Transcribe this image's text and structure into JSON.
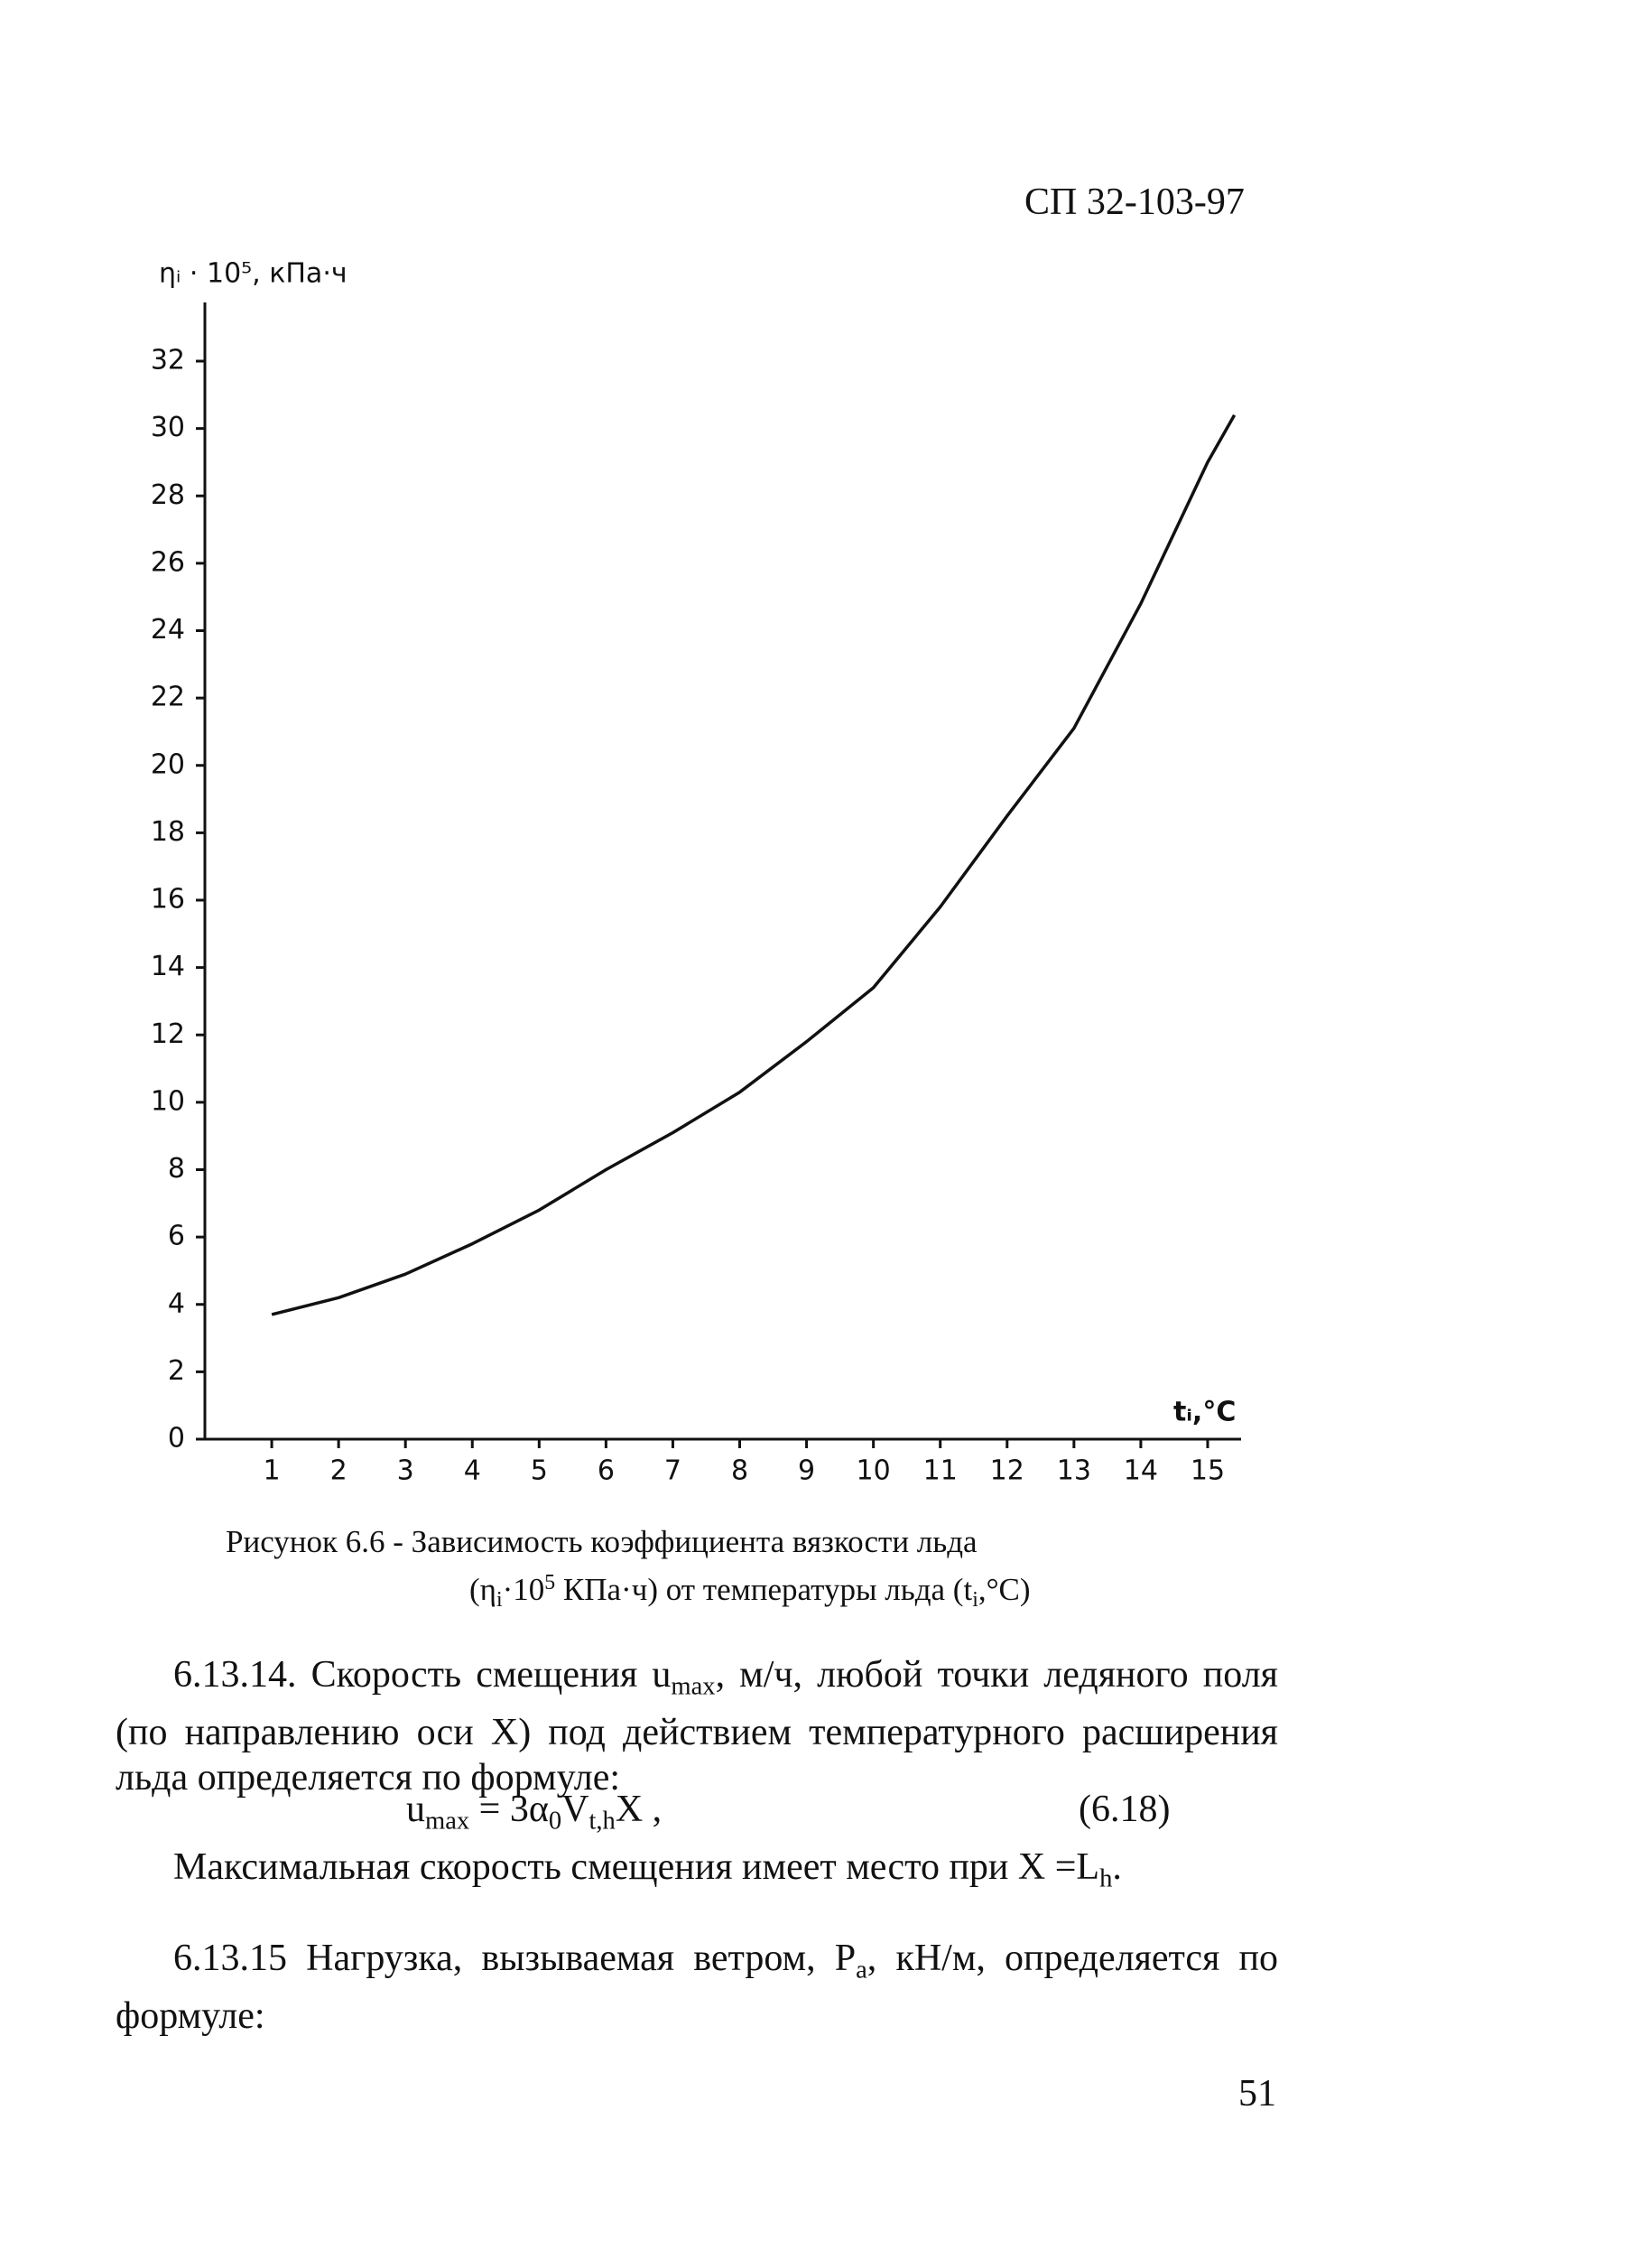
{
  "header": "СП 32-103-97",
  "chart_data": {
    "type": "line",
    "y_label": "ηᵢ · 10⁵, кПа·ч",
    "x_label": "tᵢ,°C",
    "x": [
      1,
      2,
      3,
      4,
      5,
      6,
      7,
      8,
      9,
      10,
      11,
      12,
      13,
      14,
      15,
      15.4
    ],
    "values": [
      3.7,
      4.2,
      4.9,
      5.8,
      6.8,
      8.0,
      9.1,
      10.3,
      11.8,
      13.4,
      15.8,
      18.5,
      21.1,
      24.8,
      29.0,
      30.4
    ],
    "color": "#111111",
    "xlim": [
      0,
      15.5
    ],
    "ylim": [
      0,
      32
    ],
    "xticks": [
      1,
      2,
      3,
      4,
      5,
      6,
      7,
      8,
      9,
      10,
      11,
      12,
      13,
      14,
      15
    ],
    "yticks": [
      0,
      2,
      4,
      6,
      8,
      10,
      12,
      14,
      16,
      18,
      20,
      22,
      24,
      26,
      28,
      30,
      32
    ]
  },
  "caption": {
    "line1": "Рисунок 6.6 - Зависимость коэффициента вязкости льда",
    "line2": [
      "(η",
      "i",
      "·10",
      "5",
      " КПа·ч) от температуры льда (t",
      "i",
      ",°C)"
    ]
  },
  "paragraphs": [
    [
      "6.13.14. Скорость смещения u",
      "max",
      ", м/ч, любой точки ледяного поля (по направлению оси X) под действием температурного расширения льда определяется по формуле:"
    ],
    [
      "Максимальная скорость смещения имеет место при X =L",
      "h",
      "."
    ],
    [
      "6.13.15 Нагрузка, вызываемая ветром, P",
      "a",
      ", кН/м, определяется по формуле:"
    ]
  ],
  "formula": {
    "parts": [
      "u",
      "max",
      " = 3α",
      "0",
      "V",
      "t,h",
      "X ,"
    ],
    "number": "(6.18)"
  },
  "page_number": "51"
}
